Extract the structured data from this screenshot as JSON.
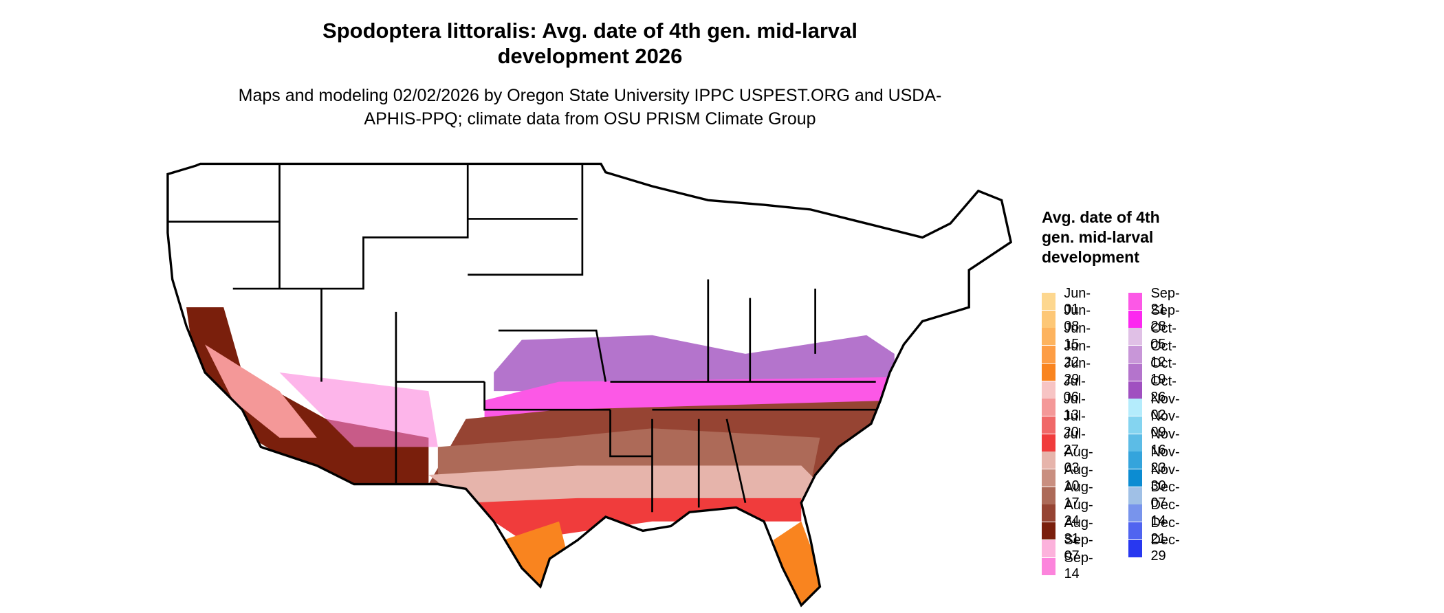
{
  "title": "Spodoptera littoralis: Avg. date of 4th gen. mid-larval development 2026",
  "subtitle": "Maps and modeling 02/02/2026 by Oregon State University IPPC USPEST.ORG and USDA-APHIS-PPQ; climate data from OSU PRISM Climate Group",
  "legend": {
    "title": "Avg. date of 4th gen. mid-larval development",
    "items": [
      {
        "label": "Jun-01",
        "color": "#fdd78f"
      },
      {
        "label": "Jun-08",
        "color": "#fdc776"
      },
      {
        "label": "Jun-15",
        "color": "#fdb35e"
      },
      {
        "label": "Jun-22",
        "color": "#fd9d45"
      },
      {
        "label": "Jun-29",
        "color": "#f9841f"
      },
      {
        "label": "Jul-06",
        "color": "#f7c4c4"
      },
      {
        "label": "Jul-13",
        "color": "#f49898"
      },
      {
        "label": "Jul-20",
        "color": "#f06868"
      },
      {
        "label": "Jul-27",
        "color": "#f03c3c"
      },
      {
        "label": "Aug-03",
        "color": "#e6b4ab"
      },
      {
        "label": "Aug-10",
        "color": "#c98f80"
      },
      {
        "label": "Aug-17",
        "color": "#ad6a58"
      },
      {
        "label": "Aug-24",
        "color": "#964433"
      },
      {
        "label": "Aug-31",
        "color": "#7a1f0c"
      },
      {
        "label": "Sep-07",
        "color": "#fcb2dc"
      },
      {
        "label": "Sep-14",
        "color": "#fc84dc"
      },
      {
        "label": "Sep-21",
        "color": "#fc58e6"
      },
      {
        "label": "Sep-28",
        "color": "#fc28f0"
      },
      {
        "label": "Oct-05",
        "color": "#e0c0e6"
      },
      {
        "label": "Oct-12",
        "color": "#c896d8"
      },
      {
        "label": "Oct-19",
        "color": "#b474cc"
      },
      {
        "label": "Oct-26",
        "color": "#a050c0"
      },
      {
        "label": "Nov-02",
        "color": "#b4ecfc"
      },
      {
        "label": "Nov-09",
        "color": "#84d4f0"
      },
      {
        "label": "Nov-16",
        "color": "#5cbce6"
      },
      {
        "label": "Nov-23",
        "color": "#34a4dc"
      },
      {
        "label": "Nov-30",
        "color": "#0c8cd2"
      },
      {
        "label": "Dec-07",
        "color": "#a0c0e6"
      },
      {
        "label": "Dec-14",
        "color": "#7894ec"
      },
      {
        "label": "Dec-21",
        "color": "#5064f0"
      },
      {
        "label": "Dec-29",
        "color": "#2838f0"
      }
    ]
  }
}
